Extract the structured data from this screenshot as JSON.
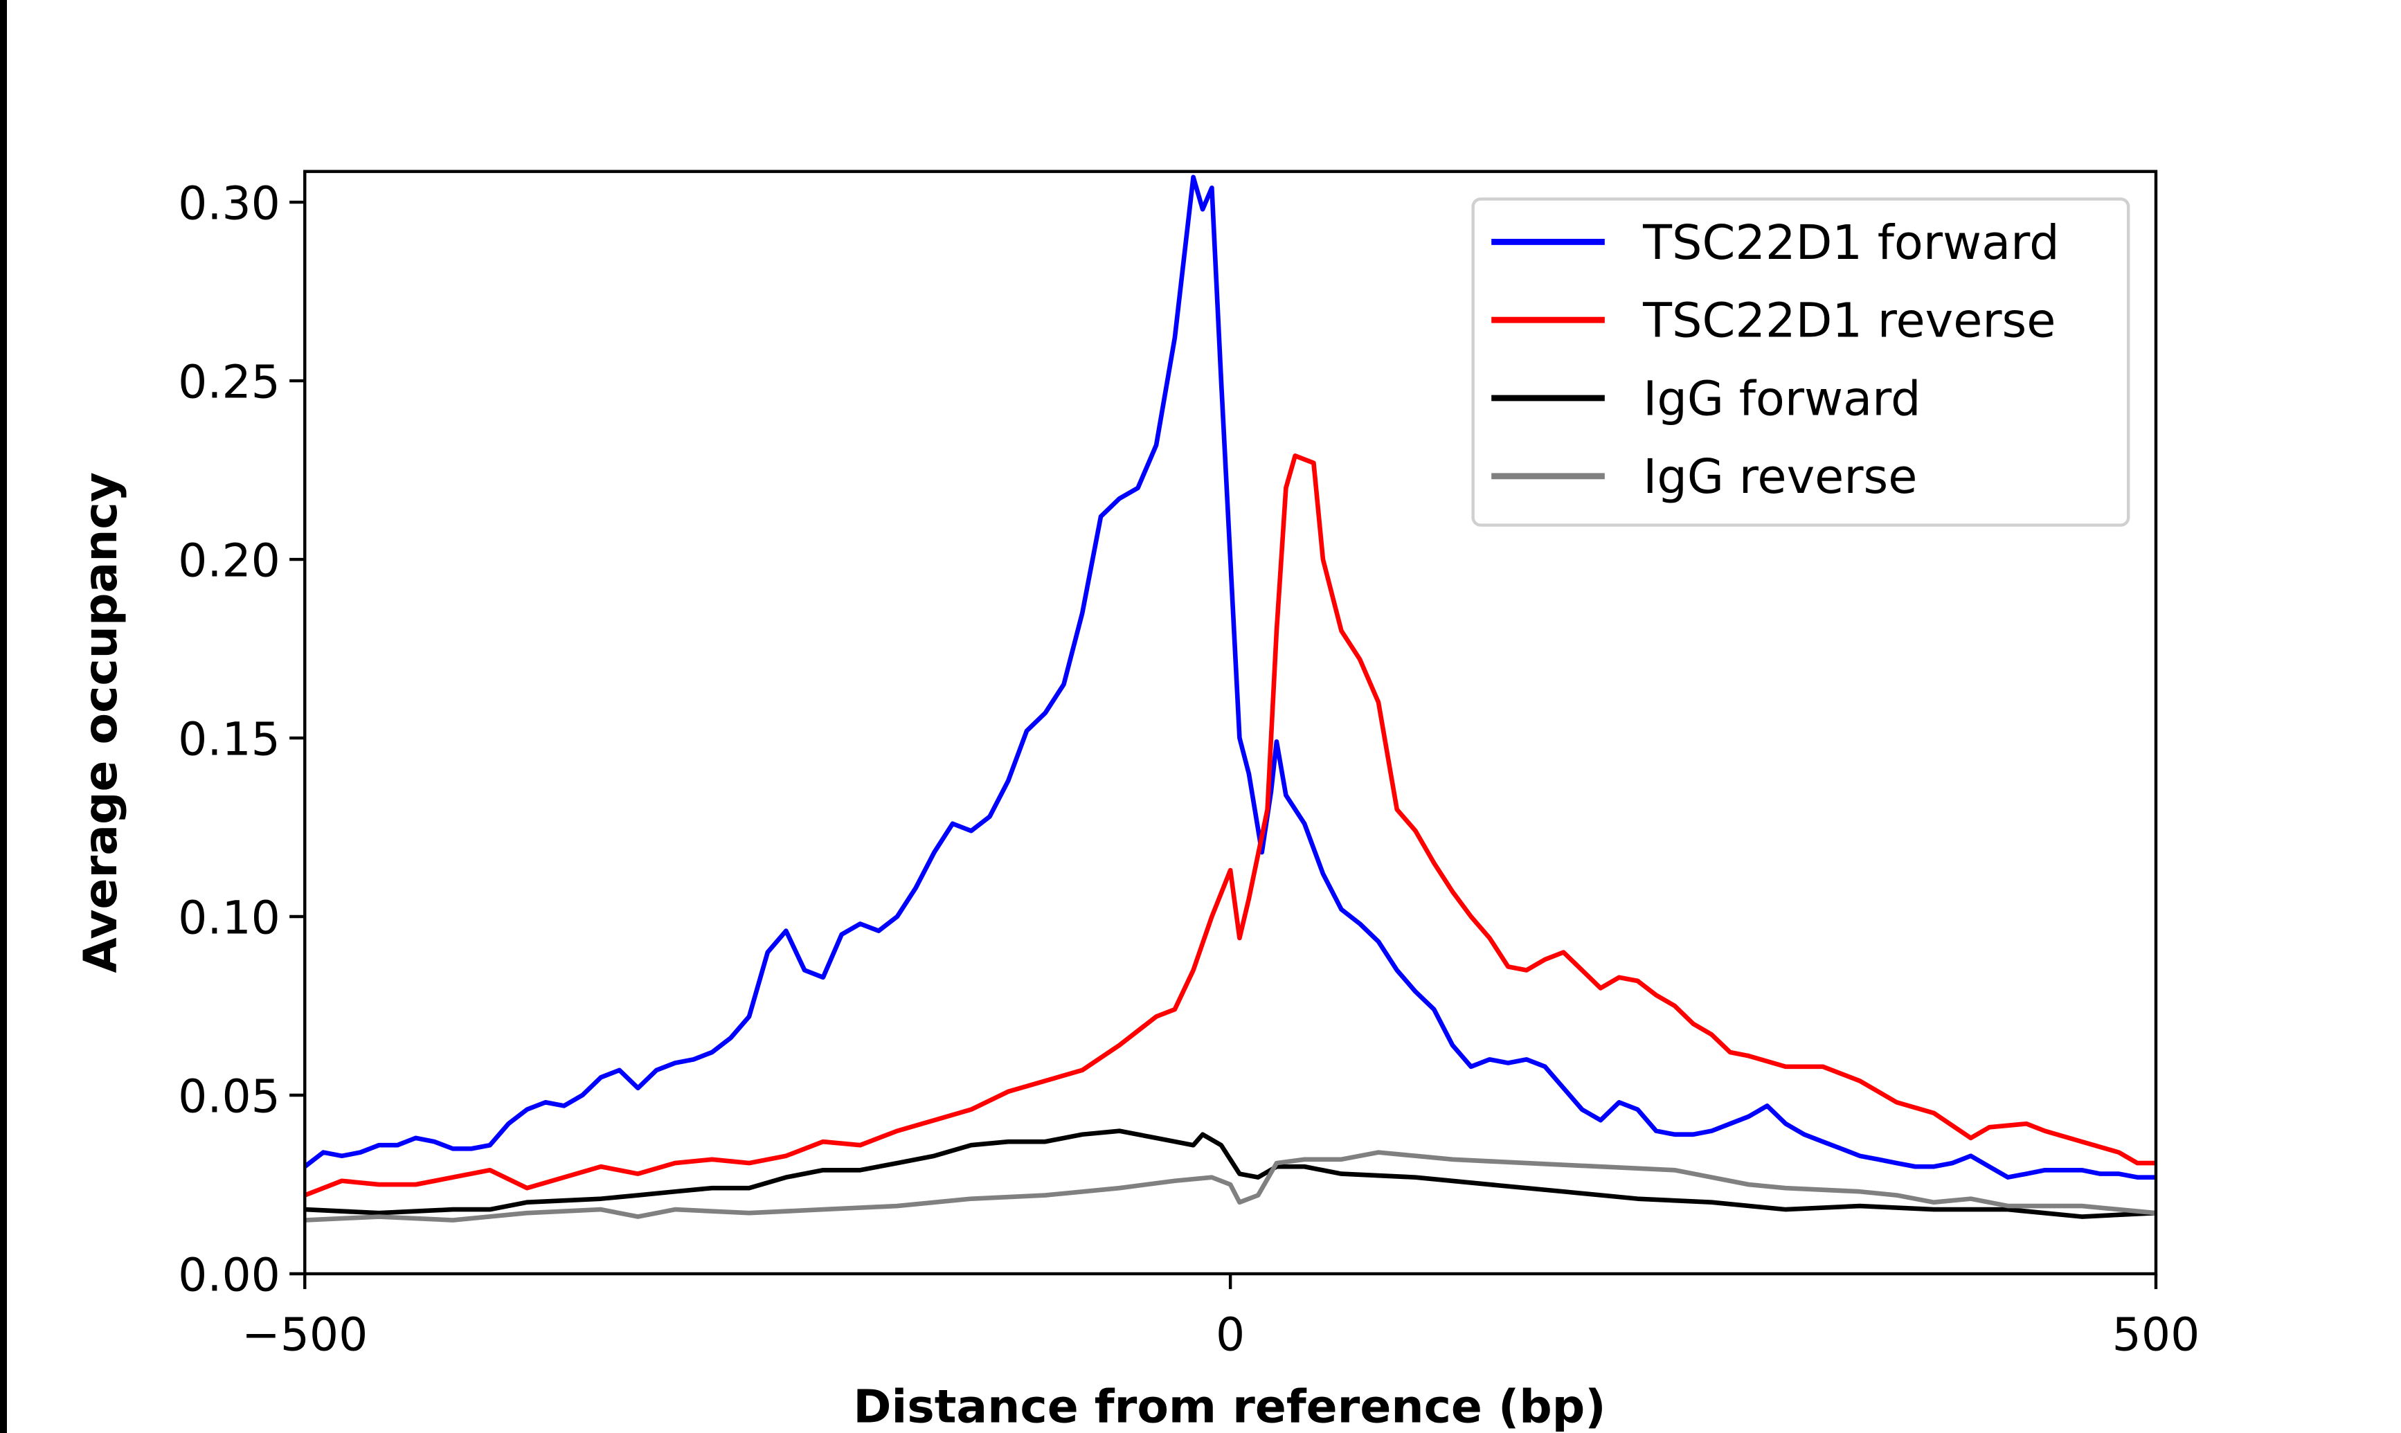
{
  "chart_data": {
    "type": "line",
    "title": "",
    "xlabel": "Distance from reference (bp)",
    "ylabel": "Average occupancy",
    "xlim": [
      -500,
      500
    ],
    "ylim": [
      0,
      0.3086
    ],
    "xticks": [
      -500,
      0,
      500
    ],
    "xtick_labels": [
      "−500",
      "0",
      "500"
    ],
    "yticks": [
      0,
      0.05,
      0.1,
      0.15,
      0.2,
      0.25,
      0.3
    ],
    "ytick_labels": [
      "0.00",
      "0.05",
      "0.10",
      "0.15",
      "0.20",
      "0.25",
      "0.30"
    ],
    "grid": false,
    "legend_position": "top-right",
    "series": [
      {
        "name": "TSC22D1 forward",
        "color": "#0000ff",
        "points": [
          [
            -500,
            0.03
          ],
          [
            -490,
            0.034
          ],
          [
            -480,
            0.033
          ],
          [
            -470,
            0.034
          ],
          [
            -460,
            0.036
          ],
          [
            -450,
            0.036
          ],
          [
            -440,
            0.038
          ],
          [
            -430,
            0.037
          ],
          [
            -420,
            0.035
          ],
          [
            -410,
            0.035
          ],
          [
            -400,
            0.036
          ],
          [
            -390,
            0.042
          ],
          [
            -380,
            0.046
          ],
          [
            -370,
            0.048
          ],
          [
            -360,
            0.047
          ],
          [
            -350,
            0.05
          ],
          [
            -340,
            0.055
          ],
          [
            -330,
            0.057
          ],
          [
            -320,
            0.052
          ],
          [
            -310,
            0.057
          ],
          [
            -300,
            0.059
          ],
          [
            -290,
            0.06
          ],
          [
            -280,
            0.062
          ],
          [
            -270,
            0.066
          ],
          [
            -260,
            0.072
          ],
          [
            -250,
            0.09
          ],
          [
            -240,
            0.096
          ],
          [
            -230,
            0.085
          ],
          [
            -220,
            0.083
          ],
          [
            -210,
            0.095
          ],
          [
            -200,
            0.098
          ],
          [
            -190,
            0.096
          ],
          [
            -180,
            0.1
          ],
          [
            -170,
            0.108
          ],
          [
            -160,
            0.118
          ],
          [
            -150,
            0.126
          ],
          [
            -140,
            0.124
          ],
          [
            -130,
            0.128
          ],
          [
            -120,
            0.138
          ],
          [
            -110,
            0.152
          ],
          [
            -100,
            0.157
          ],
          [
            -90,
            0.165
          ],
          [
            -80,
            0.185
          ],
          [
            -70,
            0.212
          ],
          [
            -60,
            0.217
          ],
          [
            -50,
            0.22
          ],
          [
            -40,
            0.232
          ],
          [
            -30,
            0.262
          ],
          [
            -20,
            0.307
          ],
          [
            -15,
            0.298
          ],
          [
            -10,
            0.304
          ],
          [
            -5,
            0.25
          ],
          [
            0,
            0.2
          ],
          [
            5,
            0.15
          ],
          [
            10,
            0.14
          ],
          [
            17,
            0.118
          ],
          [
            22,
            0.135
          ],
          [
            25,
            0.149
          ],
          [
            30,
            0.134
          ],
          [
            40,
            0.126
          ],
          [
            50,
            0.112
          ],
          [
            60,
            0.102
          ],
          [
            70,
            0.098
          ],
          [
            80,
            0.093
          ],
          [
            90,
            0.085
          ],
          [
            100,
            0.079
          ],
          [
            110,
            0.074
          ],
          [
            120,
            0.064
          ],
          [
            130,
            0.058
          ],
          [
            140,
            0.06
          ],
          [
            150,
            0.059
          ],
          [
            160,
            0.06
          ],
          [
            170,
            0.058
          ],
          [
            180,
            0.052
          ],
          [
            190,
            0.046
          ],
          [
            200,
            0.043
          ],
          [
            210,
            0.048
          ],
          [
            220,
            0.046
          ],
          [
            230,
            0.04
          ],
          [
            240,
            0.039
          ],
          [
            250,
            0.039
          ],
          [
            260,
            0.04
          ],
          [
            270,
            0.042
          ],
          [
            280,
            0.044
          ],
          [
            290,
            0.047
          ],
          [
            300,
            0.042
          ],
          [
            310,
            0.039
          ],
          [
            320,
            0.037
          ],
          [
            330,
            0.035
          ],
          [
            340,
            0.033
          ],
          [
            350,
            0.032
          ],
          [
            360,
            0.031
          ],
          [
            370,
            0.03
          ],
          [
            380,
            0.03
          ],
          [
            390,
            0.031
          ],
          [
            400,
            0.033
          ],
          [
            410,
            0.03
          ],
          [
            420,
            0.027
          ],
          [
            430,
            0.028
          ],
          [
            440,
            0.029
          ],
          [
            450,
            0.029
          ],
          [
            460,
            0.029
          ],
          [
            470,
            0.028
          ],
          [
            480,
            0.028
          ],
          [
            490,
            0.027
          ],
          [
            500,
            0.027
          ]
        ]
      },
      {
        "name": "TSC22D1 reverse",
        "color": "#ff0000",
        "points": [
          [
            -500,
            0.022
          ],
          [
            -480,
            0.026
          ],
          [
            -460,
            0.025
          ],
          [
            -440,
            0.025
          ],
          [
            -420,
            0.027
          ],
          [
            -400,
            0.029
          ],
          [
            -380,
            0.024
          ],
          [
            -360,
            0.027
          ],
          [
            -340,
            0.03
          ],
          [
            -320,
            0.028
          ],
          [
            -300,
            0.031
          ],
          [
            -280,
            0.032
          ],
          [
            -260,
            0.031
          ],
          [
            -240,
            0.033
          ],
          [
            -220,
            0.037
          ],
          [
            -200,
            0.036
          ],
          [
            -180,
            0.04
          ],
          [
            -160,
            0.043
          ],
          [
            -140,
            0.046
          ],
          [
            -120,
            0.051
          ],
          [
            -100,
            0.054
          ],
          [
            -80,
            0.057
          ],
          [
            -60,
            0.064
          ],
          [
            -40,
            0.072
          ],
          [
            -30,
            0.074
          ],
          [
            -20,
            0.085
          ],
          [
            -10,
            0.1
          ],
          [
            0,
            0.113
          ],
          [
            5,
            0.094
          ],
          [
            10,
            0.105
          ],
          [
            20,
            0.13
          ],
          [
            25,
            0.18
          ],
          [
            30,
            0.22
          ],
          [
            35,
            0.229
          ],
          [
            45,
            0.227
          ],
          [
            50,
            0.2
          ],
          [
            60,
            0.18
          ],
          [
            70,
            0.172
          ],
          [
            80,
            0.16
          ],
          [
            90,
            0.13
          ],
          [
            100,
            0.124
          ],
          [
            110,
            0.115
          ],
          [
            120,
            0.107
          ],
          [
            130,
            0.1
          ],
          [
            140,
            0.094
          ],
          [
            150,
            0.086
          ],
          [
            160,
            0.085
          ],
          [
            170,
            0.088
          ],
          [
            180,
            0.09
          ],
          [
            190,
            0.085
          ],
          [
            200,
            0.08
          ],
          [
            210,
            0.083
          ],
          [
            220,
            0.082
          ],
          [
            230,
            0.078
          ],
          [
            240,
            0.075
          ],
          [
            250,
            0.07
          ],
          [
            260,
            0.067
          ],
          [
            270,
            0.062
          ],
          [
            280,
            0.061
          ],
          [
            300,
            0.058
          ],
          [
            320,
            0.058
          ],
          [
            340,
            0.054
          ],
          [
            360,
            0.048
          ],
          [
            380,
            0.045
          ],
          [
            400,
            0.038
          ],
          [
            410,
            0.041
          ],
          [
            430,
            0.042
          ],
          [
            440,
            0.04
          ],
          [
            460,
            0.037
          ],
          [
            480,
            0.034
          ],
          [
            490,
            0.031
          ],
          [
            500,
            0.031
          ]
        ]
      },
      {
        "name": "IgG forward",
        "color": "#000000",
        "points": [
          [
            -500,
            0.018
          ],
          [
            -460,
            0.017
          ],
          [
            -420,
            0.018
          ],
          [
            -400,
            0.018
          ],
          [
            -380,
            0.02
          ],
          [
            -340,
            0.021
          ],
          [
            -320,
            0.022
          ],
          [
            -300,
            0.023
          ],
          [
            -280,
            0.024
          ],
          [
            -260,
            0.024
          ],
          [
            -240,
            0.027
          ],
          [
            -220,
            0.029
          ],
          [
            -200,
            0.029
          ],
          [
            -180,
            0.031
          ],
          [
            -160,
            0.033
          ],
          [
            -140,
            0.036
          ],
          [
            -120,
            0.037
          ],
          [
            -100,
            0.037
          ],
          [
            -80,
            0.039
          ],
          [
            -60,
            0.04
          ],
          [
            -40,
            0.038
          ],
          [
            -20,
            0.036
          ],
          [
            -15,
            0.039
          ],
          [
            -5,
            0.036
          ],
          [
            5,
            0.028
          ],
          [
            15,
            0.027
          ],
          [
            25,
            0.03
          ],
          [
            40,
            0.03
          ],
          [
            60,
            0.028
          ],
          [
            100,
            0.027
          ],
          [
            140,
            0.025
          ],
          [
            180,
            0.023
          ],
          [
            220,
            0.021
          ],
          [
            260,
            0.02
          ],
          [
            300,
            0.018
          ],
          [
            340,
            0.019
          ],
          [
            380,
            0.018
          ],
          [
            420,
            0.018
          ],
          [
            460,
            0.016
          ],
          [
            500,
            0.017
          ]
        ]
      },
      {
        "name": "IgG reverse",
        "color": "#808080",
        "points": [
          [
            -500,
            0.015
          ],
          [
            -460,
            0.016
          ],
          [
            -420,
            0.015
          ],
          [
            -380,
            0.017
          ],
          [
            -340,
            0.018
          ],
          [
            -320,
            0.016
          ],
          [
            -300,
            0.018
          ],
          [
            -260,
            0.017
          ],
          [
            -220,
            0.018
          ],
          [
            -180,
            0.019
          ],
          [
            -140,
            0.021
          ],
          [
            -100,
            0.022
          ],
          [
            -60,
            0.024
          ],
          [
            -30,
            0.026
          ],
          [
            -10,
            0.027
          ],
          [
            0,
            0.025
          ],
          [
            5,
            0.02
          ],
          [
            15,
            0.022
          ],
          [
            25,
            0.031
          ],
          [
            40,
            0.032
          ],
          [
            60,
            0.032
          ],
          [
            80,
            0.034
          ],
          [
            100,
            0.033
          ],
          [
            120,
            0.032
          ],
          [
            160,
            0.031
          ],
          [
            200,
            0.03
          ],
          [
            240,
            0.029
          ],
          [
            260,
            0.027
          ],
          [
            280,
            0.025
          ],
          [
            300,
            0.024
          ],
          [
            340,
            0.023
          ],
          [
            360,
            0.022
          ],
          [
            380,
            0.02
          ],
          [
            400,
            0.021
          ],
          [
            420,
            0.019
          ],
          [
            460,
            0.019
          ],
          [
            500,
            0.017
          ]
        ]
      }
    ]
  }
}
